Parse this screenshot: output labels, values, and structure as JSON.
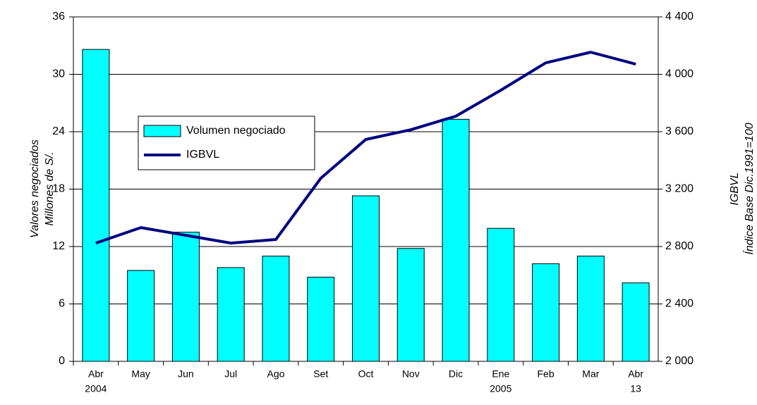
{
  "chart_data": {
    "type": "bar-line",
    "y_label": [
      "Valores negociados",
      "Millones de S/."
    ],
    "y2_label": [
      "IGBVL",
      "Índice Base Dic.1991=100"
    ],
    "categories": [
      "Abr",
      "May",
      "Jun",
      "Jul",
      "Ago",
      "Set",
      "Oct",
      "Nov",
      "Dic",
      "Ene",
      "Feb",
      "Mar",
      "Abr"
    ],
    "category_sublabels": [
      "2004",
      null,
      null,
      null,
      null,
      null,
      null,
      null,
      null,
      "2005",
      null,
      null,
      "13"
    ],
    "series": [
      {
        "name": "Volumen negociado",
        "type": "bar",
        "color": "#00ffff",
        "values": [
          32.6,
          9.5,
          13.5,
          9.8,
          11,
          8.8,
          17.3,
          11.8,
          25.3,
          13.9,
          10.2,
          11,
          8.2
        ]
      },
      {
        "name": "IGBVL",
        "type": "line",
        "axis": "y2",
        "color": "#000080",
        "values": [
          2824,
          2932,
          2878,
          2824,
          2849,
          3276,
          3546,
          3614,
          3708,
          3889,
          4080,
          4154,
          4071
        ]
      }
    ],
    "ylim": [
      0,
      36
    ],
    "yticks": [
      0,
      6,
      12,
      18,
      24,
      30,
      36
    ],
    "y2lim": [
      2000,
      4400
    ],
    "y2ticks": [
      {
        "value": 2000,
        "label": "2 000"
      },
      {
        "value": 2400,
        "label": "2 400"
      },
      {
        "value": 2800,
        "label": "2 800"
      },
      {
        "value": 3200,
        "label": "3 200"
      },
      {
        "value": 3600,
        "label": "3 600"
      },
      {
        "value": 4000,
        "label": "4 000"
      },
      {
        "value": 4400,
        "label": "4 400"
      }
    ],
    "grid": true
  }
}
